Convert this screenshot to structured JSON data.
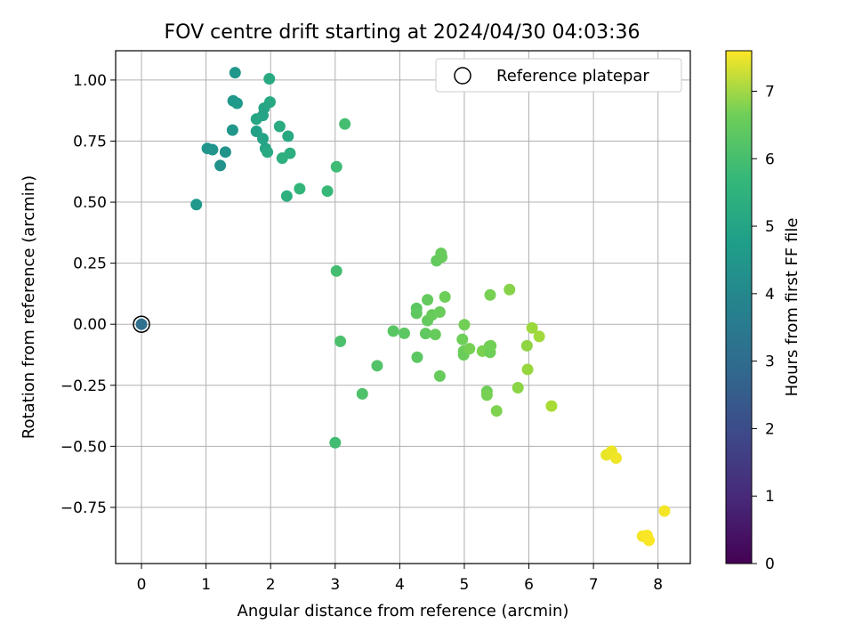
{
  "chart_data": {
    "type": "scatter",
    "title": "FOV centre drift starting at 2024/04/30 04:03:36",
    "xlabel": "Angular distance from reference (arcmin)",
    "ylabel": "Rotation from reference (arcmin)",
    "xlim": [
      -0.4,
      8.5
    ],
    "ylim": [
      -0.98,
      1.12
    ],
    "xticks": [
      0,
      1,
      2,
      3,
      4,
      5,
      6,
      7,
      8
    ],
    "xtick_labels": [
      "0",
      "1",
      "2",
      "3",
      "4",
      "5",
      "6",
      "7",
      "8"
    ],
    "yticks": [
      1.0,
      0.75,
      0.5,
      0.25,
      0.0,
      -0.25,
      -0.5,
      -0.75
    ],
    "ytick_labels": [
      "1.00",
      "0.75",
      "0.50",
      "0.25",
      "0.00",
      "−0.25",
      "−0.50",
      "−0.75"
    ],
    "grid": true,
    "legend": {
      "position": "top-right",
      "entries": [
        "Reference platepar"
      ]
    },
    "reference_point": {
      "x": 0.0,
      "y": 0.0,
      "hours": 2.8
    },
    "colorbar": {
      "label": "Hours from first FF file",
      "range": [
        0,
        7.6
      ],
      "ticks": [
        0,
        1,
        2,
        3,
        4,
        5,
        6,
        7
      ],
      "tick_labels": [
        "0",
        "1",
        "2",
        "3",
        "4",
        "5",
        "6",
        "7"
      ],
      "colormap": "viridis"
    },
    "points": [
      {
        "x": 0.0,
        "y": 0.0,
        "hours": 2.8
      },
      {
        "x": 1.45,
        "y": 1.03,
        "hours": 4.0
      },
      {
        "x": 1.42,
        "y": 0.915,
        "hours": 4.05
      },
      {
        "x": 1.48,
        "y": 0.905,
        "hours": 4.1
      },
      {
        "x": 1.41,
        "y": 0.795,
        "hours": 4.0
      },
      {
        "x": 1.02,
        "y": 0.72,
        "hours": 3.95
      },
      {
        "x": 1.1,
        "y": 0.715,
        "hours": 3.95
      },
      {
        "x": 1.3,
        "y": 0.705,
        "hours": 3.9
      },
      {
        "x": 1.22,
        "y": 0.65,
        "hours": 3.85
      },
      {
        "x": 0.85,
        "y": 0.49,
        "hours": 4.05
      },
      {
        "x": 1.98,
        "y": 1.005,
        "hours": 4.6
      },
      {
        "x": 1.99,
        "y": 0.91,
        "hours": 4.55
      },
      {
        "x": 1.9,
        "y": 0.885,
        "hours": 4.5
      },
      {
        "x": 1.88,
        "y": 0.855,
        "hours": 4.4
      },
      {
        "x": 1.78,
        "y": 0.84,
        "hours": 4.5
      },
      {
        "x": 1.78,
        "y": 0.79,
        "hours": 4.3
      },
      {
        "x": 1.88,
        "y": 0.76,
        "hours": 4.4
      },
      {
        "x": 1.92,
        "y": 0.72,
        "hours": 4.45
      },
      {
        "x": 1.95,
        "y": 0.705,
        "hours": 4.6
      },
      {
        "x": 2.14,
        "y": 0.81,
        "hours": 4.65
      },
      {
        "x": 2.27,
        "y": 0.77,
        "hours": 4.6
      },
      {
        "x": 2.18,
        "y": 0.68,
        "hours": 4.8
      },
      {
        "x": 2.3,
        "y": 0.7,
        "hours": 4.75
      },
      {
        "x": 2.25,
        "y": 0.525,
        "hours": 4.8
      },
      {
        "x": 2.45,
        "y": 0.555,
        "hours": 5.0
      },
      {
        "x": 2.88,
        "y": 0.545,
        "hours": 5.1
      },
      {
        "x": 3.15,
        "y": 0.82,
        "hours": 5.3
      },
      {
        "x": 3.02,
        "y": 0.645,
        "hours": 5.2
      },
      {
        "x": 3.02,
        "y": 0.218,
        "hours": 5.3
      },
      {
        "x": 3.08,
        "y": -0.07,
        "hours": 5.4
      },
      {
        "x": 3.0,
        "y": -0.485,
        "hours": 5.25
      },
      {
        "x": 3.42,
        "y": -0.285,
        "hours": 5.45
      },
      {
        "x": 3.65,
        "y": -0.17,
        "hours": 5.5
      },
      {
        "x": 3.9,
        "y": -0.028,
        "hours": 5.6
      },
      {
        "x": 4.07,
        "y": -0.037,
        "hours": 5.65
      },
      {
        "x": 4.26,
        "y": 0.065,
        "hours": 5.65
      },
      {
        "x": 4.26,
        "y": 0.045,
        "hours": 5.7
      },
      {
        "x": 4.27,
        "y": -0.135,
        "hours": 5.65
      },
      {
        "x": 4.4,
        "y": -0.038,
        "hours": 5.7
      },
      {
        "x": 4.43,
        "y": 0.1,
        "hours": 5.75
      },
      {
        "x": 4.43,
        "y": 0.015,
        "hours": 5.75
      },
      {
        "x": 4.5,
        "y": 0.038,
        "hours": 5.8
      },
      {
        "x": 4.55,
        "y": -0.042,
        "hours": 5.8
      },
      {
        "x": 4.57,
        "y": 0.26,
        "hours": 5.75
      },
      {
        "x": 4.64,
        "y": 0.29,
        "hours": 5.8
      },
      {
        "x": 4.65,
        "y": 0.275,
        "hours": 5.8
      },
      {
        "x": 4.62,
        "y": 0.05,
        "hours": 5.85
      },
      {
        "x": 4.7,
        "y": 0.112,
        "hours": 5.9
      },
      {
        "x": 4.62,
        "y": -0.212,
        "hours": 5.8
      },
      {
        "x": 4.97,
        "y": -0.062,
        "hours": 5.9
      },
      {
        "x": 5.0,
        "y": -0.002,
        "hours": 5.95
      },
      {
        "x": 4.99,
        "y": -0.11,
        "hours": 5.9
      },
      {
        "x": 4.99,
        "y": -0.125,
        "hours": 5.85
      },
      {
        "x": 5.08,
        "y": -0.1,
        "hours": 6.0
      },
      {
        "x": 5.28,
        "y": -0.11,
        "hours": 6.05
      },
      {
        "x": 5.35,
        "y": -0.275,
        "hours": 5.9
      },
      {
        "x": 5.35,
        "y": -0.29,
        "hours": 6.0
      },
      {
        "x": 5.39,
        "y": -0.09,
        "hours": 6.0
      },
      {
        "x": 5.4,
        "y": -0.115,
        "hours": 5.9
      },
      {
        "x": 5.41,
        "y": -0.088,
        "hours": 5.95
      },
      {
        "x": 5.4,
        "y": 0.12,
        "hours": 6.0
      },
      {
        "x": 5.5,
        "y": -0.355,
        "hours": 6.1
      },
      {
        "x": 5.7,
        "y": 0.142,
        "hours": 6.2
      },
      {
        "x": 5.83,
        "y": -0.26,
        "hours": 6.25
      },
      {
        "x": 5.97,
        "y": -0.088,
        "hours": 6.3
      },
      {
        "x": 5.98,
        "y": -0.185,
        "hours": 6.4
      },
      {
        "x": 6.05,
        "y": -0.015,
        "hours": 6.45
      },
      {
        "x": 6.16,
        "y": -0.05,
        "hours": 6.5
      },
      {
        "x": 6.35,
        "y": -0.335,
        "hours": 6.6
      },
      {
        "x": 7.2,
        "y": -0.535,
        "hours": 7.35
      },
      {
        "x": 7.28,
        "y": -0.52,
        "hours": 7.4
      },
      {
        "x": 7.35,
        "y": -0.548,
        "hours": 7.45
      },
      {
        "x": 7.76,
        "y": -0.868,
        "hours": 7.5
      },
      {
        "x": 7.83,
        "y": -0.865,
        "hours": 7.55
      },
      {
        "x": 7.86,
        "y": -0.885,
        "hours": 7.55
      },
      {
        "x": 8.1,
        "y": -0.765,
        "hours": 7.5
      }
    ]
  }
}
